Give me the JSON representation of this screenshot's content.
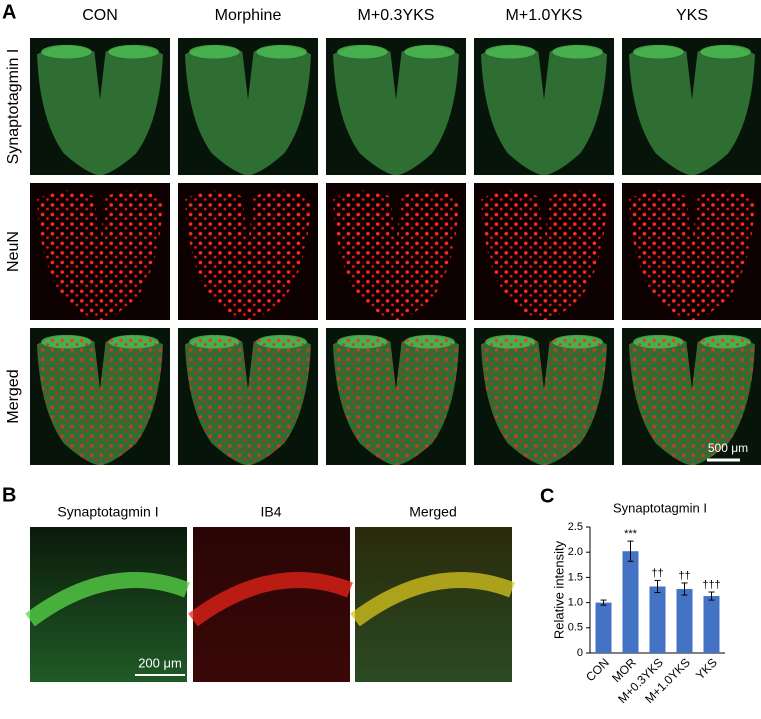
{
  "panel_a": {
    "label": "A",
    "columns": [
      "CON",
      "Morphine",
      "M+0.3YKS",
      "M+1.0YKS",
      "YKS"
    ],
    "rows": [
      "Synaptotagmin I",
      "NeuN",
      "Merged"
    ],
    "scale_bar": "500 μm"
  },
  "panel_b": {
    "label": "B",
    "columns": [
      "Synaptotagmin I",
      "IB4",
      "Merged"
    ],
    "scale_bar": "200 μm"
  },
  "chart_data": {
    "type": "bar",
    "panel_label": "C",
    "title": "Synaptotagmin I",
    "y_label": "Relative intensity",
    "categories": [
      "CON",
      "MOR",
      "M+0.3YKS",
      "M+1.0YKS",
      "YKS"
    ],
    "values": [
      1.0,
      2.02,
      1.32,
      1.27,
      1.13
    ],
    "errors": [
      0.05,
      0.2,
      0.12,
      0.12,
      0.08
    ],
    "significance": [
      null,
      "***",
      "††",
      "††",
      "†††"
    ],
    "color": "#4472c4",
    "ylim": [
      0,
      2.5
    ],
    "yticks": [
      0,
      0.5,
      {
        "value": 1,
        "label": "1.0"
      },
      1.5,
      {
        "value": 2,
        "label": "2.0"
      },
      2.5
    ]
  }
}
